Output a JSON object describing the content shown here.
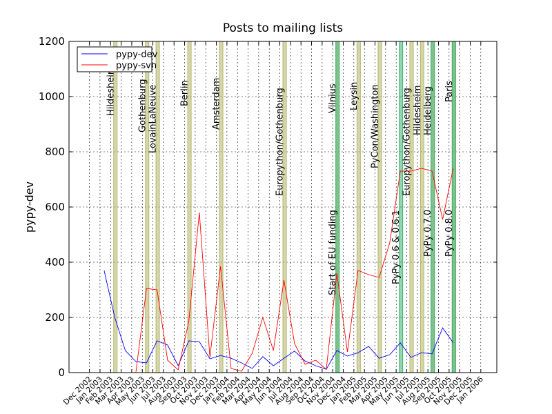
{
  "chart_data": {
    "type": "line",
    "title": "Posts to mailing lists",
    "ylabel": "pypy-dev",
    "xlabel": "",
    "ylim": [
      0,
      1200
    ],
    "yticks": [
      0,
      200,
      400,
      600,
      800,
      1000,
      1200
    ],
    "grid": true,
    "legend_position": "top-left",
    "x_ticks": [
      "Dec 2002",
      "Jan 2003",
      "Feb 2003",
      "Mar 2003",
      "Apr 2003",
      "May 2003",
      "Jun 2003",
      "Jul 2003",
      "Aug 2003",
      "Sep 2003",
      "Oct 2003",
      "Nov 2003",
      "Dec 2003",
      "Jan 2004",
      "Feb 2004",
      "Mar 2004",
      "Apr 2004",
      "May 2004",
      "Jun 2004",
      "Jul 2004",
      "Aug 2004",
      "Sep 2004",
      "Oct 2004",
      "Nov 2004",
      "Dec 2004",
      "Jan 2005",
      "Feb 2005",
      "Mar 2005",
      "Apr 2005",
      "May 2005",
      "Jun 2005",
      "Jul 2005",
      "Aug 2005",
      "Sep 2005",
      "Oct 2005",
      "Nov 2005",
      "Dec 2005",
      "Jan 2006"
    ],
    "series": [
      {
        "name": "pypy-dev",
        "color": "#0000ff",
        "points": [
          [
            "Jan 2003",
            370
          ],
          [
            "Feb 2003",
            200
          ],
          [
            "Mar 2003",
            80
          ],
          [
            "Apr 2003",
            40
          ],
          [
            "May 2003",
            35
          ],
          [
            "Jun 2003",
            115
          ],
          [
            "Jul 2003",
            100
          ],
          [
            "Aug 2003",
            25
          ],
          [
            "Sep 2003",
            115
          ],
          [
            "Oct 2003",
            112
          ],
          [
            "Nov 2003",
            50
          ],
          [
            "Dec 2003",
            62
          ],
          [
            "Jan 2004",
            52
          ],
          [
            "Feb 2004",
            35
          ],
          [
            "Mar 2004",
            15
          ],
          [
            "Apr 2004",
            58
          ],
          [
            "May 2004",
            25
          ],
          [
            "Jun 2004",
            52
          ],
          [
            "Jul 2004",
            78
          ],
          [
            "Aug 2004",
            42
          ],
          [
            "Sep 2004",
            25
          ],
          [
            "Oct 2004",
            12
          ],
          [
            "Nov 2004",
            80
          ],
          [
            "Dec 2004",
            60
          ],
          [
            "Jan 2005",
            72
          ],
          [
            "Feb 2005",
            95
          ],
          [
            "Mar 2005",
            52
          ],
          [
            "Apr 2005",
            65
          ],
          [
            "May 2005",
            108
          ],
          [
            "Jun 2005",
            55
          ],
          [
            "Jul 2005",
            72
          ],
          [
            "Aug 2005",
            68
          ],
          [
            "Sep 2005",
            162
          ],
          [
            "Oct 2005",
            108
          ]
        ]
      },
      {
        "name": "pypy-svn",
        "color": "#ff0000",
        "points": [
          [
            "Apr 2003",
            0
          ],
          [
            "May 2003",
            305
          ],
          [
            "Jun 2003",
            300
          ],
          [
            "Jul 2003",
            45
          ],
          [
            "Aug 2003",
            10
          ],
          [
            "Sep 2003",
            185
          ],
          [
            "Oct 2003",
            580
          ],
          [
            "Nov 2003",
            55
          ],
          [
            "Dec 2003",
            385
          ],
          [
            "Jan 2004",
            15
          ],
          [
            "Feb 2004",
            5
          ],
          [
            "Mar 2004",
            70
          ],
          [
            "Apr 2004",
            200
          ],
          [
            "May 2004",
            80
          ],
          [
            "Jun 2004",
            335
          ],
          [
            "Jul 2004",
            105
          ],
          [
            "Aug 2004",
            30
          ],
          [
            "Sep 2004",
            45
          ],
          [
            "Oct 2004",
            12
          ],
          [
            "Nov 2004",
            360
          ],
          [
            "Dec 2004",
            75
          ],
          [
            "Jan 2005",
            370
          ],
          [
            "Feb 2005",
            355
          ],
          [
            "Mar 2005",
            345
          ],
          [
            "Apr 2005",
            470
          ],
          [
            "May 2005",
            730
          ],
          [
            "Jun 2005",
            730
          ],
          [
            "Jul 2005",
            740
          ],
          [
            "Aug 2005",
            730
          ],
          [
            "Sep 2005",
            555
          ],
          [
            "Oct 2005",
            740
          ]
        ]
      }
    ],
    "events": [
      {
        "label": "Hildesheim",
        "x": "Feb 2003",
        "x2": "Feb 2003",
        "color": "#b5b56a",
        "label_y": 930
      },
      {
        "label": "Gothenburg",
        "x": "May 2003",
        "x2": "May 2003",
        "color": "#b5b56a",
        "label_y": 870
      },
      {
        "label": "LovainLaNeuve",
        "x": "Jun 2003",
        "x2": "Jun 2003",
        "color": "#b5b56a",
        "label_y": 795
      },
      {
        "label": "Berlin",
        "x": "Sep 2003",
        "x2": "Sep 2003",
        "color": "#b5b56a",
        "label_y": 965
      },
      {
        "label": "Amsterdam",
        "x": "Dec 2003",
        "x2": "Dec 2003",
        "color": "#b5b56a",
        "label_y": 880
      },
      {
        "label": "Europython/Gothenburg",
        "x": "Jun 2004",
        "x2": "Jun 2004",
        "color": "#b5b56a",
        "label_y": 640
      },
      {
        "label": "Vilnius",
        "x": "Nov 2004",
        "x2": "Nov 2004",
        "color": "#b5b56a",
        "label_y": 940
      },
      {
        "label": "Start of EU funding",
        "x": "Nov 2004",
        "x2": "Nov 2004",
        "color": "#3cb371",
        "label_y": 280
      },
      {
        "label": "Leysin",
        "x": "Jan 2005",
        "x2": "Jan 2005",
        "color": "#b5b56a",
        "label_y": 950
      },
      {
        "label": "PyCon/Washington",
        "x": "Mar 2005",
        "x2": "Mar 2005",
        "color": "#b5b56a",
        "label_y": 740
      },
      {
        "label": "PyPy 0.6 & 0.6.1",
        "x": "May 2005",
        "x2": "May 2005",
        "color": "#3cb371",
        "label_y": 320
      },
      {
        "label": "Europython/Gothenburg",
        "x": "Jun 2005",
        "x2": "Jun 2005",
        "color": "#b5b56a",
        "label_y": 640
      },
      {
        "label": "Hildesheim",
        "x": "Jul 2005",
        "x2": "Jul 2005",
        "color": "#b5b56a",
        "label_y": 860
      },
      {
        "label": "Heidelberg",
        "x": "Aug 2005",
        "x2": "Aug 2005",
        "color": "#b5b56a",
        "label_y": 860
      },
      {
        "label": "PyPy 0.7.0",
        "x": "Aug 2005",
        "x2": "Aug 2005",
        "color": "#3cb371",
        "label_y": 420
      },
      {
        "label": "Paris",
        "x": "Oct 2005",
        "x2": "Oct 2005",
        "color": "#b5b56a",
        "label_y": 980
      },
      {
        "label": "PyPy 0.8.0",
        "x": "Oct 2005",
        "x2": "Oct 2005",
        "color": "#3cb371",
        "label_y": 420
      }
    ]
  }
}
